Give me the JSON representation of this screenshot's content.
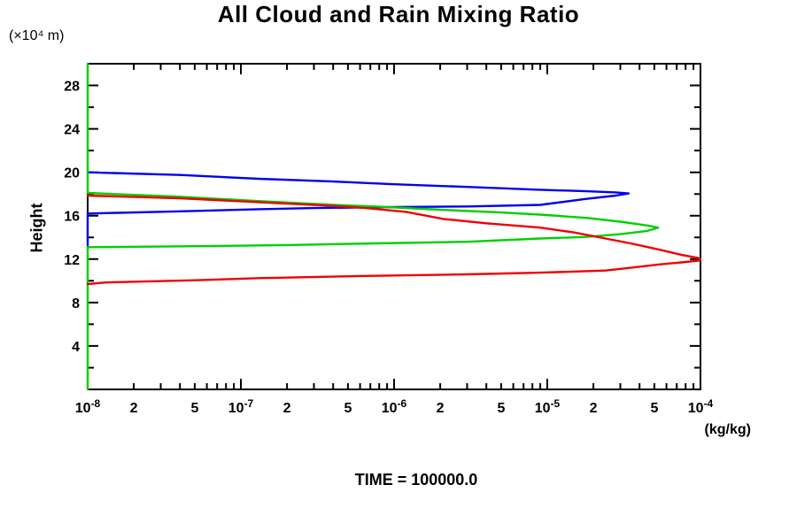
{
  "title": "All Cloud and Rain Mixing Ratio",
  "y_axis": {
    "label": "Height",
    "unit_label": "(×10⁴ m)"
  },
  "x_axis": {
    "unit_label": "(kg/kg)"
  },
  "footer": {
    "time_label": "TIME = 100000.0"
  },
  "chart_data": {
    "type": "line",
    "title": "All Cloud and Rain Mixing Ratio",
    "xlabel": "(kg/kg)",
    "ylabel": "Height (×10⁴ m)",
    "x_scale": "log",
    "xlim": [
      1e-08,
      0.0001
    ],
    "ylim": [
      0,
      30
    ],
    "grid": false,
    "legend": "none",
    "x_major_exponents": [
      -8,
      -7,
      -6,
      -5,
      -4
    ],
    "x_labeled_minors": [
      2,
      5
    ],
    "y_major_ticks": [
      4,
      8,
      12,
      16,
      20,
      24,
      28
    ],
    "y_minor_step": 2,
    "axis_color": "#000000",
    "series": [
      {
        "name": "series-blue",
        "color": "#0000f0",
        "points": [
          [
            1e-08,
            20.0
          ],
          [
            4e-08,
            19.75
          ],
          [
            1.3e-07,
            19.4
          ],
          [
            4e-07,
            19.15
          ],
          [
            1e-06,
            18.9
          ],
          [
            3e-06,
            18.65
          ],
          [
            8.5e-06,
            18.4
          ],
          [
            1.8e-05,
            18.25
          ],
          [
            2.8e-05,
            18.15
          ],
          [
            3.4e-05,
            18.05
          ],
          [
            2.8e-05,
            17.85
          ],
          [
            1.8e-05,
            17.55
          ],
          [
            9e-06,
            17.0
          ],
          [
            3e-06,
            16.85
          ],
          [
            1e-06,
            16.8
          ],
          [
            3e-07,
            16.7
          ],
          [
            1.3e-07,
            16.6
          ],
          [
            4e-08,
            16.4
          ],
          [
            1e-08,
            16.2
          ],
          [
            1e-08,
            13.2
          ]
        ]
      },
      {
        "name": "series-green",
        "color": "#00d000",
        "points": [
          [
            1e-08,
            30
          ],
          [
            1e-08,
            18.1
          ],
          [
            4e-08,
            17.75
          ],
          [
            1.3e-07,
            17.35
          ],
          [
            4e-07,
            17.0
          ],
          [
            7.5e-07,
            16.85
          ],
          [
            2e-06,
            16.55
          ],
          [
            5e-06,
            16.3
          ],
          [
            9e-06,
            16.1
          ],
          [
            1.8e-05,
            15.8
          ],
          [
            3e-05,
            15.45
          ],
          [
            4.5e-05,
            15.1
          ],
          [
            5.3e-05,
            14.9
          ],
          [
            4.5e-05,
            14.6
          ],
          [
            3e-05,
            14.3
          ],
          [
            1.8e-05,
            14.05
          ],
          [
            9e-06,
            13.9
          ],
          [
            3e-06,
            13.6
          ],
          [
            7.5e-07,
            13.45
          ],
          [
            2e-07,
            13.3
          ],
          [
            6e-08,
            13.2
          ],
          [
            1e-08,
            13.1
          ],
          [
            1e-08,
            0
          ]
        ]
      },
      {
        "name": "series-red",
        "color": "#f00000",
        "points": [
          [
            1e-08,
            17.85
          ],
          [
            4e-08,
            17.6
          ],
          [
            1.3e-07,
            17.25
          ],
          [
            4e-07,
            16.9
          ],
          [
            6.5e-07,
            16.7
          ],
          [
            1.2e-06,
            16.35
          ],
          [
            2.1e-06,
            15.7
          ],
          [
            4e-06,
            15.3
          ],
          [
            9e-06,
            14.9
          ],
          [
            1.5e-05,
            14.45
          ],
          [
            2.4e-05,
            13.9
          ],
          [
            3.5e-05,
            13.45
          ],
          [
            5.3e-05,
            12.9
          ],
          [
            7.5e-05,
            12.4
          ],
          [
            9.7e-05,
            12.1
          ],
          [
            0.0001,
            12.0
          ],
          [
            9.7e-05,
            11.85
          ],
          [
            7.5e-05,
            11.7
          ],
          [
            5.3e-05,
            11.5
          ],
          [
            3.5e-05,
            11.2
          ],
          [
            2.4e-05,
            10.95
          ],
          [
            9e-06,
            10.75
          ],
          [
            3e-06,
            10.6
          ],
          [
            6.5e-07,
            10.45
          ],
          [
            1.3e-07,
            10.25
          ],
          [
            5e-08,
            10.05
          ],
          [
            2.5e-08,
            9.95
          ],
          [
            1.3e-08,
            9.85
          ],
          [
            1e-08,
            9.7
          ]
        ]
      }
    ]
  }
}
